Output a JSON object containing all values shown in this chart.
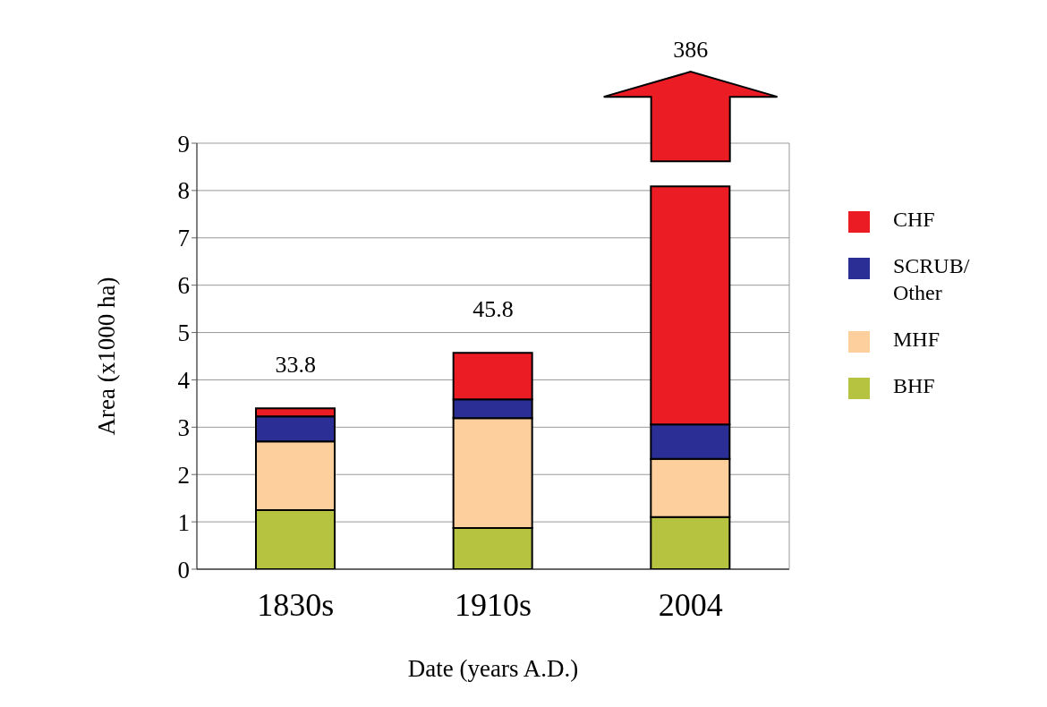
{
  "chart_data": {
    "type": "bar",
    "stacked": true,
    "xlabel": "Date (years A.D.)",
    "ylabel": "Area (x1000 ha)",
    "categories": [
      "1830s",
      "1910s",
      "2004"
    ],
    "series": [
      {
        "name": "BHF",
        "color": "#b5c341",
        "values": [
          1.25,
          0.87,
          1.1
        ]
      },
      {
        "name": "MHF",
        "color": "#fccf9d",
        "values": [
          1.45,
          2.32,
          1.23
        ]
      },
      {
        "name": "SCRUB/ Other",
        "color": "#2b2f95",
        "values": [
          0.53,
          0.4,
          0.73
        ]
      },
      {
        "name": "CHF",
        "color": "#ec1c24",
        "values": [
          0.17,
          0.98,
          5.03
        ]
      }
    ],
    "annotations": [
      "33.8",
      "45.8",
      "386"
    ],
    "ylim": [
      0,
      9
    ],
    "yticks": [
      0,
      1,
      2,
      3,
      4,
      5,
      6,
      7,
      8,
      9
    ],
    "grid": "y",
    "legend": "right"
  }
}
